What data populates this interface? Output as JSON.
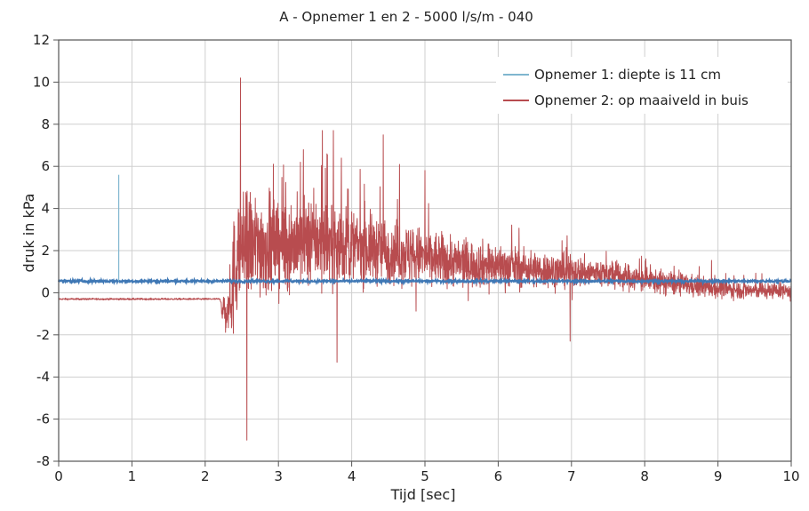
{
  "chart_data": {
    "type": "line",
    "title": "A - Opnemer 1 en 2  - 5000 l/s/m - 040",
    "xlabel": "Tijd [sec]",
    "ylabel": "druk in kPa",
    "xlim": [
      0,
      10
    ],
    "ylim": [
      -8,
      12
    ],
    "x_ticks": [
      "0",
      "1",
      "2",
      "3",
      "4",
      "5",
      "6",
      "7",
      "8",
      "9",
      "10"
    ],
    "y_ticks": [
      "-8",
      "-6",
      "-4",
      "-2",
      "0",
      "2",
      "4",
      "6",
      "8",
      "10",
      "12"
    ],
    "grid": true,
    "legend_position": "top-right",
    "series": [
      {
        "name": "Opnemer 1: diepte is 11 cm",
        "color": "#3f78b5",
        "legend_color": "#7fb6cf",
        "baseline": 0.55,
        "x": [
          0,
          0.8,
          0.82,
          0.84,
          0.86,
          2.0,
          4.0,
          6.0,
          8.0,
          10.0
        ],
        "values": [
          0.55,
          0.55,
          5.6,
          0.55,
          0.55,
          0.55,
          0.55,
          0.55,
          0.55,
          0.55
        ]
      },
      {
        "name": "Opnemer 2: op maaiveld in buis",
        "color": "#b84c4f",
        "legend_color": "#b84c4f",
        "x": [
          0,
          2.2,
          2.3,
          2.45,
          2.55,
          3.0,
          3.5,
          4.0,
          4.5,
          5.0,
          5.5,
          6.0,
          6.5,
          7.0,
          7.5,
          8.0,
          8.5,
          9.0,
          9.5,
          10.0
        ],
        "values": [
          -0.3,
          -0.3,
          -1.2,
          2.0,
          2.2,
          2.3,
          2.4,
          2.2,
          2.0,
          1.7,
          1.4,
          1.3,
          1.1,
          1.0,
          0.9,
          0.6,
          0.4,
          0.2,
          0.1,
          0.1
        ],
        "peaks": [
          {
            "x": 2.48,
            "y": 10.2
          },
          {
            "x": 2.57,
            "y": -7.0
          },
          {
            "x": 3.3,
            "y": 6.2
          },
          {
            "x": 3.6,
            "y": 7.7
          },
          {
            "x": 3.75,
            "y": 7.7
          },
          {
            "x": 3.8,
            "y": -3.3
          },
          {
            "x": 4.43,
            "y": 7.5
          },
          {
            "x": 5.0,
            "y": 5.8
          },
          {
            "x": 6.98,
            "y": -2.3
          }
        ]
      }
    ]
  }
}
